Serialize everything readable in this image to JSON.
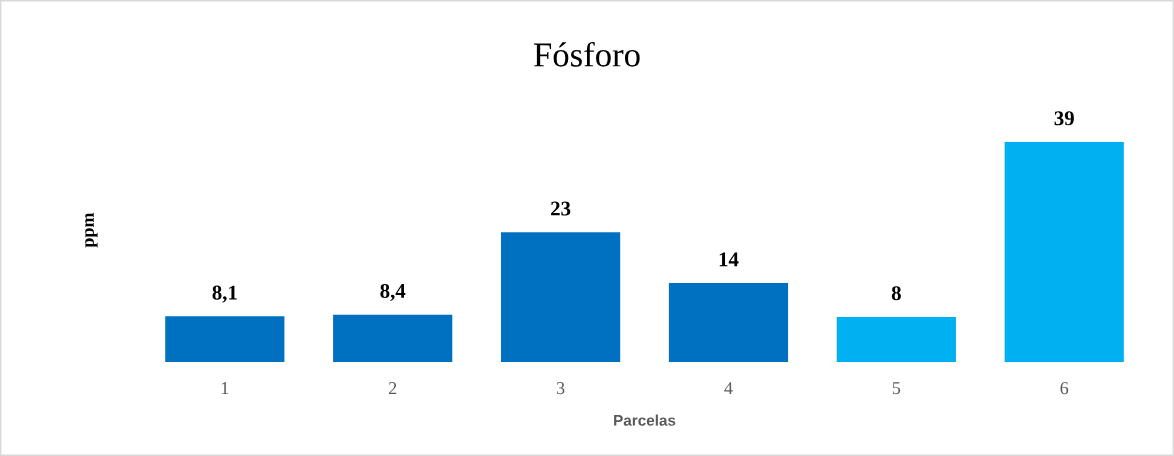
{
  "chart_data": {
    "type": "bar",
    "title": "Fósforo",
    "xlabel": "Parcelas",
    "ylabel": "ppm",
    "categories": [
      "1",
      "2",
      "3",
      "4",
      "5",
      "6"
    ],
    "values": [
      8.1,
      8.4,
      23,
      14,
      8,
      39
    ],
    "value_labels": [
      "8,1",
      "8,4",
      "23",
      "14",
      "8",
      "39"
    ],
    "colors": [
      "#0070c0",
      "#0070c0",
      "#0070c0",
      "#0070c0",
      "#00b0f0",
      "#00b0f0"
    ],
    "grid": false,
    "legend": false
  }
}
